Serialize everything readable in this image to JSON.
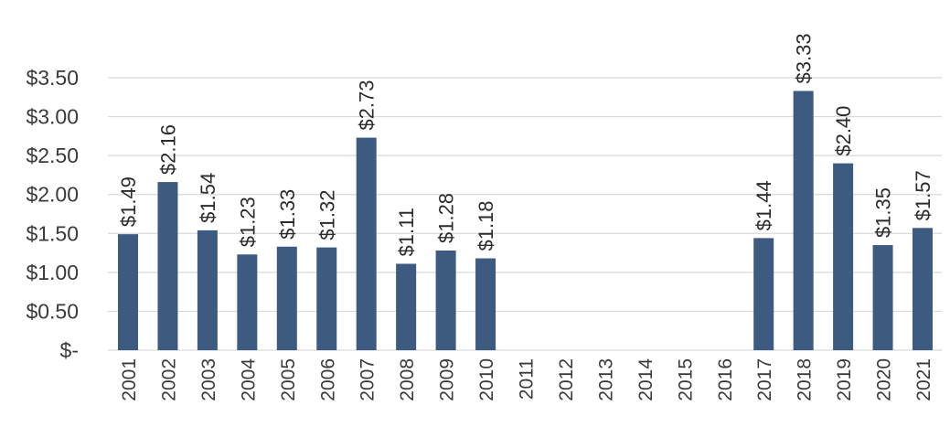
{
  "chart_data": {
    "type": "bar",
    "title": "",
    "xlabel": "",
    "ylabel": "",
    "categories": [
      "2001",
      "2002",
      "2003",
      "2004",
      "2005",
      "2006",
      "2007",
      "2008",
      "2009",
      "2010",
      "2011",
      "2012",
      "2013",
      "2014",
      "2015",
      "2016",
      "2017",
      "2018",
      "2019",
      "2020",
      "2021"
    ],
    "values": [
      1.49,
      2.16,
      1.54,
      1.23,
      1.33,
      1.32,
      2.73,
      1.11,
      1.28,
      1.18,
      null,
      null,
      null,
      null,
      null,
      null,
      1.44,
      3.33,
      2.4,
      1.35,
      1.57
    ],
    "data_labels": [
      "$1.49",
      "$2.16",
      "$1.54",
      "$1.23",
      "$1.33",
      "$1.32",
      "$2.73",
      "$1.11",
      "$1.28",
      "$1.18",
      "",
      "",
      "",
      "",
      "",
      "",
      "$1.44",
      "$3.33",
      "$2.40",
      "$1.35",
      "$1.57"
    ],
    "y_ticks": [
      0,
      0.5,
      1.0,
      1.5,
      2.0,
      2.5,
      3.0,
      3.5
    ],
    "y_tick_labels": [
      "$-",
      "$0.50",
      "$1.00",
      "$1.50",
      "$2.00",
      "$2.50",
      "$3.00",
      "$3.50"
    ],
    "ylim": [
      0,
      3.5
    ],
    "grid": true,
    "legend": "none",
    "bar_color": "#3d5a80"
  }
}
